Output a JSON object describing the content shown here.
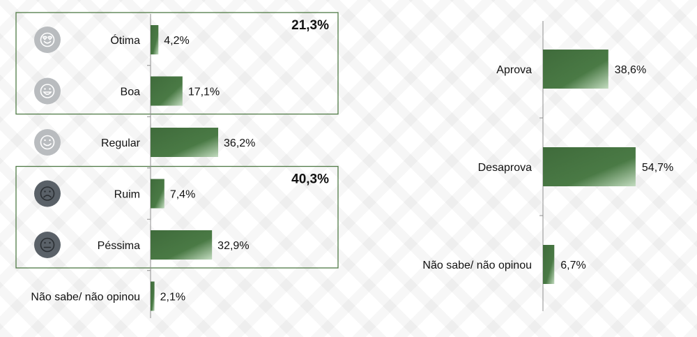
{
  "chart_data": [
    {
      "type": "bar",
      "orientation": "horizontal",
      "categories": [
        "Ótima",
        "Boa",
        "Regular",
        "Ruim",
        "Péssima",
        "Não sabe/ não opinou"
      ],
      "values": [
        4.2,
        17.1,
        36.2,
        7.4,
        32.9,
        2.1
      ],
      "value_labels": [
        "4,2%",
        "17,1%",
        "36,2%",
        "7,4%",
        "32,9%",
        "2,1%"
      ],
      "icons": [
        "heart-eyes-face-icon",
        "grinning-face-icon",
        "smiling-face-icon",
        "frowning-face-icon",
        "neutral-face-icon",
        ""
      ],
      "groups": [
        {
          "label": "21,3%",
          "categories": [
            "Ótima",
            "Boa"
          ]
        },
        {
          "label": "40,3%",
          "categories": [
            "Ruim",
            "Péssima"
          ]
        }
      ],
      "xlim": [
        0,
        100
      ],
      "grid": false,
      "bar_color": "#4a7a45"
    },
    {
      "type": "bar",
      "orientation": "horizontal",
      "categories": [
        "Aprova",
        "Desaprova",
        "Não sabe/ não opinou"
      ],
      "values": [
        38.6,
        54.7,
        6.7
      ],
      "value_labels": [
        "38,6%",
        "54,7%",
        "6,7%"
      ],
      "xlim": [
        0,
        100
      ],
      "grid": false,
      "bar_color": "#4a7a45"
    }
  ],
  "colors": {
    "bar": "#4a7a45",
    "bar_light": "#b7d3b3",
    "group_border": "#4f7a45",
    "icon_light": "#b9bcbf",
    "icon_dark": "#5a6168"
  }
}
